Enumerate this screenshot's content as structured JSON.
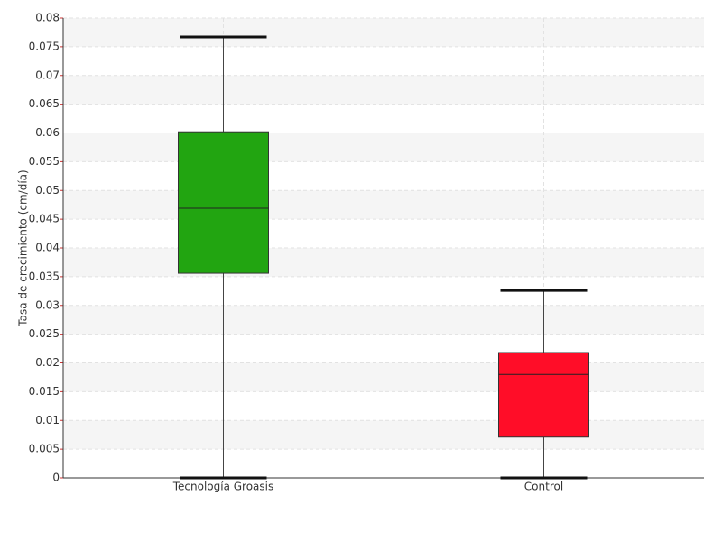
{
  "chart_data": {
    "type": "box",
    "y_label": "Tasa de crecimiento (cm/día)",
    "categories": [
      "Tecnología Groasis",
      "Control"
    ],
    "boxes": [
      {
        "min": 0,
        "q1": 0.0356,
        "median": 0.0469,
        "q3": 0.0602,
        "max": 0.0767,
        "color": "#22a511"
      },
      {
        "min": 0,
        "q1": 0.0071,
        "median": 0.018,
        "q3": 0.0218,
        "max": 0.0326,
        "color": "#ff0d28"
      }
    ],
    "ylim": [
      0,
      0.08
    ],
    "yticks": [
      0,
      0.005,
      0.01,
      0.015,
      0.02,
      0.025,
      0.03,
      0.035,
      0.04,
      0.045,
      0.05,
      0.055,
      0.06,
      0.065,
      0.07,
      0.075,
      0.08
    ],
    "grid": true
  }
}
